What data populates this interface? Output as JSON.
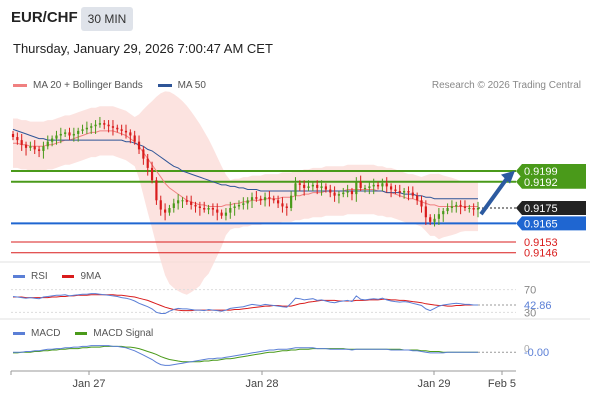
{
  "header": {
    "symbol": "EUR/CHF",
    "timeframe": "30 MIN",
    "datetime": "Thursday, January 29, 2026 7:00:47 AM CET"
  },
  "legend": {
    "ma20_label": "MA 20 + Bollinger Bands",
    "ma20_color": "#f08080",
    "ma50_label": "MA 50",
    "ma50_color": "#2f5597",
    "credit": "Research © 2026 Trading Central"
  },
  "rsi_legend": {
    "rsi_label": "RSI",
    "rsi_color": "#5b7fd6",
    "ma_label": "9MA",
    "ma_color": "#d91c1c"
  },
  "macd_legend": {
    "macd_label": "MACD",
    "macd_color": "#5b7fd6",
    "signal_label": "MACD Signal",
    "signal_color": "#4a9a1a"
  },
  "chart_data": [
    {
      "type": "candlestick",
      "x_ticks": [
        "Jan 27",
        "Jan 28",
        "Jan 29",
        "Feb 5"
      ],
      "ylim": [
        0.914,
        0.9245
      ],
      "close_series": [
        0.9221,
        0.9219,
        0.9216,
        0.9214,
        0.9215,
        0.9213,
        0.9212,
        0.9215,
        0.9218,
        0.922,
        0.9222,
        0.9223,
        0.9224,
        0.9222,
        0.9223,
        0.9225,
        0.9226,
        0.9227,
        0.9228,
        0.9229,
        0.923,
        0.9229,
        0.9228,
        0.9227,
        0.9226,
        0.9225,
        0.9224,
        0.9222,
        0.9218,
        0.9213,
        0.9207,
        0.9201,
        0.9193,
        0.918,
        0.9174,
        0.9172,
        0.9175,
        0.9178,
        0.918,
        0.918,
        0.9179,
        0.9177,
        0.9176,
        0.9175,
        0.9174,
        0.9175,
        0.9174,
        0.9172,
        0.917,
        0.9172,
        0.9175,
        0.9176,
        0.9177,
        0.9178,
        0.918,
        0.9182,
        0.9181,
        0.918,
        0.9182,
        0.9181,
        0.918,
        0.9178,
        0.9176,
        0.9175,
        0.9183,
        0.9191,
        0.919,
        0.9188,
        0.9189,
        0.919,
        0.9188,
        0.9189,
        0.9187,
        0.9185,
        0.9183,
        0.9184,
        0.9185,
        0.9186,
        0.9184,
        0.9192,
        0.9188,
        0.9188,
        0.9189,
        0.919,
        0.9189,
        0.9191,
        0.9189,
        0.9187,
        0.9186,
        0.9185,
        0.9186,
        0.9185,
        0.9183,
        0.918,
        0.9176,
        0.9169,
        0.9166,
        0.9168,
        0.9171,
        0.9173,
        0.9175,
        0.9176,
        0.9177,
        0.9176,
        0.9175,
        0.9175,
        0.9174,
        0.9175
      ],
      "ma20_series": [
        0.9217,
        0.9217,
        0.9216,
        0.9216,
        0.9215,
        0.9215,
        0.9215,
        0.9215,
        0.9216,
        0.9216,
        0.9217,
        0.9218,
        0.9219,
        0.9219,
        0.922,
        0.9221,
        0.9222,
        0.9223,
        0.9224,
        0.9224,
        0.9225,
        0.9225,
        0.9225,
        0.9225,
        0.9224,
        0.9223,
        0.9222,
        0.922,
        0.9218,
        0.9215,
        0.9211,
        0.9207,
        0.9203,
        0.9199,
        0.9195,
        0.9191,
        0.9188,
        0.9186,
        0.9184,
        0.9182,
        0.918,
        0.9179,
        0.9178,
        0.9177,
        0.9177,
        0.9176,
        0.9176,
        0.9176,
        0.9176,
        0.9177,
        0.9177,
        0.9178,
        0.9178,
        0.9179,
        0.9179,
        0.918,
        0.918,
        0.918,
        0.9181,
        0.9181,
        0.9181,
        0.9181,
        0.9182,
        0.9182,
        0.9182,
        0.9183,
        0.9183,
        0.9184,
        0.9184,
        0.9185,
        0.9185,
        0.9185,
        0.9186,
        0.9186,
        0.9186,
        0.9186,
        0.9186,
        0.9187,
        0.9187,
        0.9187,
        0.9187,
        0.9187,
        0.9187,
        0.9187,
        0.9186,
        0.9186,
        0.9185,
        0.9185,
        0.9184,
        0.9183,
        0.9182,
        0.9181,
        0.9181,
        0.918,
        0.9179,
        0.9178,
        0.9177,
        0.9177,
        0.9176,
        0.9176,
        0.9176,
        0.9176,
        0.9176,
        0.9176,
        0.9176,
        0.9176,
        0.9176,
        0.9176
      ],
      "ma50_series": [
        0.9226,
        0.9225,
        0.9224,
        0.9223,
        0.9222,
        0.9221,
        0.922,
        0.922,
        0.9219,
        0.9219,
        0.9219,
        0.9219,
        0.9219,
        0.9219,
        0.9219,
        0.9219,
        0.9219,
        0.9219,
        0.9219,
        0.9219,
        0.9219,
        0.9219,
        0.9219,
        0.9219,
        0.9219,
        0.9219,
        0.9218,
        0.9218,
        0.9217,
        0.9216,
        0.9215,
        0.9213,
        0.9212,
        0.921,
        0.9208,
        0.9206,
        0.9204,
        0.9202,
        0.9201,
        0.9199,
        0.9198,
        0.9197,
        0.9196,
        0.9195,
        0.9194,
        0.9193,
        0.9192,
        0.9191,
        0.919,
        0.919,
        0.9189,
        0.9189,
        0.9188,
        0.9188,
        0.9187,
        0.9187,
        0.9187,
        0.9186,
        0.9186,
        0.9186,
        0.9186,
        0.9186,
        0.9186,
        0.9186,
        0.9186,
        0.9186,
        0.9186,
        0.9186,
        0.9186,
        0.9186,
        0.9186,
        0.9186,
        0.9186,
        0.9186,
        0.9186,
        0.9186,
        0.9186,
        0.9186,
        0.9186,
        0.9186,
        0.9186,
        0.9186,
        0.9186,
        0.9186,
        0.9186,
        0.9186,
        0.9185,
        0.9185,
        0.9185,
        0.9185,
        0.9184,
        0.9184,
        0.9184,
        0.9183,
        0.9183,
        0.9182,
        0.9182,
        0.9181,
        0.9181,
        0.9181,
        0.9181,
        0.9181,
        0.9181,
        0.9181,
        0.9181,
        0.9181,
        0.9181,
        0.9181
      ],
      "levels": [
        {
          "value": "0.9199",
          "color": "#4a9a1a",
          "kind": "resistance",
          "price": 0.9199
        },
        {
          "value": "0.9192",
          "color": "#4a9a1a",
          "kind": "resistance",
          "price": 0.9192
        },
        {
          "value": "0.9175",
          "color": "#222222",
          "kind": "current",
          "price": 0.9175
        },
        {
          "value": "0.9165",
          "color": "#1f66d1",
          "kind": "pivot",
          "price": 0.9165
        },
        {
          "value": "0.9153",
          "color": "#d91c1c",
          "kind": "support",
          "price": 0.9153
        },
        {
          "value": "0.9146",
          "color": "#d91c1c",
          "kind": "support",
          "price": 0.9146
        }
      ]
    },
    {
      "type": "line",
      "name": "RSI",
      "ticks": [
        "70",
        "30"
      ],
      "current_label": "42.86",
      "ylim": [
        20,
        80
      ],
      "rsi_series": [
        58,
        57,
        56,
        55,
        56,
        55,
        54,
        57,
        58,
        59,
        60,
        60,
        61,
        59,
        60,
        61,
        62,
        62,
        63,
        63,
        62,
        61,
        60,
        59,
        58,
        56,
        55,
        53,
        50,
        46,
        43,
        40,
        36,
        30,
        28,
        28,
        32,
        35,
        37,
        36,
        36,
        35,
        34,
        34,
        33,
        35,
        34,
        33,
        32,
        34,
        37,
        38,
        39,
        40,
        42,
        44,
        43,
        42,
        44,
        43,
        42,
        41,
        40,
        39,
        46,
        55,
        54,
        52,
        53,
        54,
        51,
        52,
        50,
        48,
        47,
        49,
        50,
        51,
        49,
        59,
        53,
        52,
        53,
        54,
        53,
        55,
        52,
        50,
        49,
        48,
        49,
        48,
        46,
        44,
        42,
        36,
        33,
        37,
        41,
        43,
        44,
        45,
        46,
        45,
        44,
        44,
        43,
        42.86
      ],
      "ma_series": [
        57,
        57,
        57,
        56,
        56,
        56,
        56,
        56,
        56,
        57,
        57,
        58,
        58,
        59,
        59,
        60,
        60,
        60,
        61,
        61,
        61,
        61,
        61,
        61,
        60,
        60,
        59,
        58,
        57,
        55,
        53,
        51,
        48,
        45,
        42,
        39,
        37,
        35,
        34,
        33,
        33,
        33,
        34,
        34,
        34,
        34,
        34,
        34,
        34,
        34,
        34,
        35,
        35,
        36,
        37,
        38,
        39,
        40,
        41,
        41,
        42,
        42,
        41,
        41,
        41,
        43,
        45,
        46,
        48,
        49,
        50,
        51,
        51,
        51,
        51,
        50,
        50,
        50,
        50,
        51,
        51,
        51,
        52,
        52,
        52,
        53,
        53,
        52,
        52,
        51,
        51,
        50,
        49,
        48,
        47,
        45,
        44,
        43,
        42,
        42,
        41,
        41,
        42,
        42,
        43,
        43,
        43,
        43
      ]
    },
    {
      "type": "line",
      "name": "MACD",
      "ticks": [
        "0"
      ],
      "current_label": "-0.00",
      "ylim": [
        -0.0025,
        0.0012
      ],
      "macd_series": [
        -0.0002,
        -0.0002,
        -0.0002,
        -0.0001,
        -0.0001,
        0.0,
        0.0,
        0.0001,
        0.0002,
        0.0002,
        0.0003,
        0.0003,
        0.0004,
        0.0004,
        0.0005,
        0.0005,
        0.0006,
        0.0006,
        0.0007,
        0.0007,
        0.0007,
        0.0007,
        0.0007,
        0.0006,
        0.0006,
        0.0005,
        0.0004,
        0.0002,
        0.0,
        -0.0003,
        -0.0006,
        -0.0009,
        -0.0012,
        -0.0016,
        -0.0019,
        -0.002,
        -0.002,
        -0.0019,
        -0.0018,
        -0.0017,
        -0.0016,
        -0.0015,
        -0.0014,
        -0.0013,
        -0.0012,
        -0.0011,
        -0.0011,
        -0.001,
        -0.001,
        -0.0009,
        -0.0008,
        -0.0007,
        -0.0006,
        -0.0005,
        -0.0004,
        -0.0003,
        -0.0002,
        -0.0001,
        0.0,
        0.0001,
        0.0001,
        0.0002,
        0.0002,
        0.0002,
        0.0003,
        0.0004,
        0.0004,
        0.0004,
        0.0004,
        0.0004,
        0.0003,
        0.0003,
        0.0003,
        0.0002,
        0.0002,
        0.0002,
        0.0002,
        0.0002,
        0.0001,
        0.0002,
        0.0002,
        0.0002,
        0.0002,
        0.0002,
        0.0002,
        0.0002,
        0.0002,
        0.0001,
        0.0001,
        0.0001,
        0.0001,
        0.0001,
        0.0,
        0.0,
        -0.0001,
        -0.0002,
        -0.0003,
        -0.0003,
        -0.0003,
        -0.0003,
        -0.0002,
        -0.0002,
        -0.0002,
        -0.0002,
        -0.0002,
        -0.0002,
        -0.0002,
        -0.0002
      ],
      "signal_series": [
        -0.0003,
        -0.0003,
        -0.0002,
        -0.0002,
        -0.0002,
        -0.0001,
        -0.0001,
        0.0,
        0.0,
        0.0001,
        0.0001,
        0.0002,
        0.0002,
        0.0003,
        0.0003,
        0.0003,
        0.0004,
        0.0004,
        0.0005,
        0.0005,
        0.0005,
        0.0006,
        0.0006,
        0.0006,
        0.0006,
        0.0006,
        0.0005,
        0.0005,
        0.0004,
        0.0003,
        0.0001,
        -0.0001,
        -0.0003,
        -0.0005,
        -0.0008,
        -0.001,
        -0.0012,
        -0.0013,
        -0.0014,
        -0.0015,
        -0.0015,
        -0.0015,
        -0.0015,
        -0.0015,
        -0.0014,
        -0.0014,
        -0.0013,
        -0.0013,
        -0.0012,
        -0.0011,
        -0.0011,
        -0.001,
        -0.0009,
        -0.0008,
        -0.0007,
        -0.0006,
        -0.0005,
        -0.0004,
        -0.0003,
        -0.0002,
        -0.0002,
        -0.0001,
        0.0,
        0.0,
        0.0001,
        0.0001,
        0.0002,
        0.0002,
        0.0002,
        0.0003,
        0.0003,
        0.0003,
        0.0003,
        0.0003,
        0.0003,
        0.0003,
        0.0003,
        0.0002,
        0.0002,
        0.0002,
        0.0002,
        0.0002,
        0.0002,
        0.0002,
        0.0002,
        0.0002,
        0.0002,
        0.0002,
        0.0002,
        0.0002,
        0.0001,
        0.0001,
        0.0001,
        0.0001,
        0.0,
        0.0,
        -0.0001,
        -0.0001,
        -0.0001,
        -0.0002,
        -0.0002,
        -0.0002,
        -0.0002,
        -0.0002,
        -0.0002,
        -0.0002,
        -0.0002,
        -0.0002
      ]
    }
  ]
}
